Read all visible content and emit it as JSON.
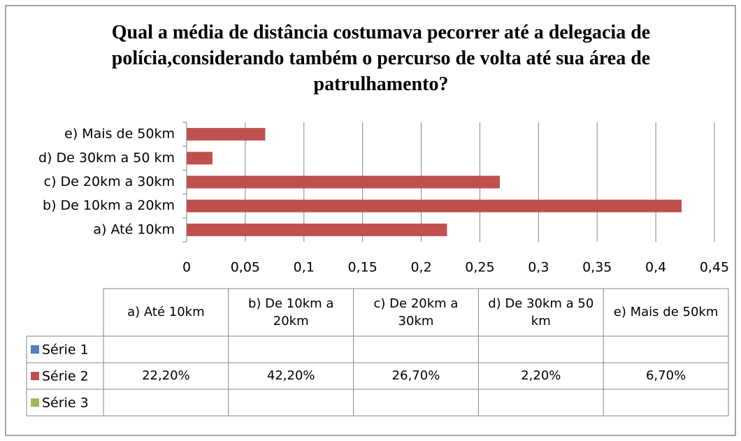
{
  "chart_data": {
    "type": "bar",
    "orientation": "horizontal",
    "title": "Qual a média de distância costumava pecorrer até a delegacia de polícia,considerando também o percurso de volta até sua área de patrulhamento?",
    "categories": [
      "a) Até 10km",
      "b) De 10km a 20km",
      "c) De 20km a 30km",
      "d) De 30km a 50 km",
      "e) Mais de 50km"
    ],
    "series": [
      {
        "name": "Série 1",
        "color": "#4f81bd",
        "values": [
          null,
          null,
          null,
          null,
          null
        ]
      },
      {
        "name": "Série 2",
        "color": "#c0504d",
        "values": [
          0.222,
          0.422,
          0.267,
          0.022,
          0.067
        ],
        "value_labels": [
          "22,20%",
          "42,20%",
          "26,70%",
          "2,20%",
          "6,70%"
        ]
      },
      {
        "name": "Série 3",
        "color": "#9bbb59",
        "values": [
          null,
          null,
          null,
          null,
          null
        ]
      }
    ],
    "xlim": [
      0,
      0.45
    ],
    "xticks": [
      0,
      {
        "value": 0.05,
        "label": "0,05"
      },
      {
        "value": 0.1,
        "label": "0,1"
      },
      {
        "value": 0.15,
        "label": "0,15"
      },
      {
        "value": 0.2,
        "label": "0,2"
      },
      {
        "value": 0.25,
        "label": "0,25"
      },
      {
        "value": 0.3,
        "label": "0,3"
      },
      {
        "value": 0.35,
        "label": "0,35"
      },
      {
        "value": 0.4,
        "label": "0,4"
      },
      {
        "value": 0.45,
        "label": "0,45"
      }
    ],
    "grid": true,
    "data_table": true
  }
}
